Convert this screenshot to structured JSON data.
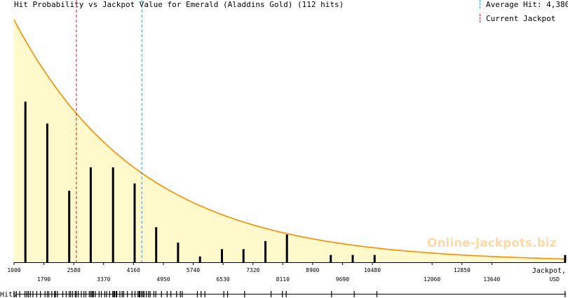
{
  "title": "Hit Probability vs Jackpot Value for Emerald (Aladdins Gold) (112 hits)",
  "legend": {
    "average": {
      "label": "Average Hit: 4,380",
      "color": "#3399dd"
    },
    "current": {
      "label": "Current Jackpot",
      "color": "#cc2222"
    }
  },
  "watermark": "Online-Jackpots.biz",
  "hits_label": "Hits",
  "chart_data": {
    "type": "bar",
    "title": "Hit Probability vs Jackpot Value for Emerald (Aladdins Gold) (112 hits)",
    "xlabel": "Jackpot,",
    "xlabel_unit": "USD",
    "xlim": [
      1000,
      15600
    ],
    "x_ticks": [
      1000,
      1790,
      2580,
      3370,
      4160,
      4950,
      5740,
      6530,
      7320,
      8110,
      8900,
      9690,
      10480,
      12060,
      12850,
      13640
    ],
    "bars": [
      {
        "x": 1300,
        "v": 11
      },
      {
        "x": 1880,
        "v": 9.5
      },
      {
        "x": 2460,
        "v": 4.9
      },
      {
        "x": 3030,
        "v": 6.5
      },
      {
        "x": 3620,
        "v": 6.5
      },
      {
        "x": 4190,
        "v": 5.4
      },
      {
        "x": 4760,
        "v": 2.4
      },
      {
        "x": 5340,
        "v": 1.35
      },
      {
        "x": 5920,
        "v": 0.4
      },
      {
        "x": 6500,
        "v": 0.9
      },
      {
        "x": 7070,
        "v": 0.9
      },
      {
        "x": 7650,
        "v": 1.45
      },
      {
        "x": 8220,
        "v": 1.9
      },
      {
        "x": 9380,
        "v": 0.5
      },
      {
        "x": 9960,
        "v": 0.5
      },
      {
        "x": 10540,
        "v": 0.5
      },
      {
        "x": 15580,
        "v": 0.5
      }
    ],
    "ylim": [
      0,
      17
    ],
    "curve": {
      "name": "fit",
      "color": "#ff8c00",
      "fill": "#fff9cc",
      "peak": 16.6,
      "scale": 3380
    },
    "average_hit": 4380,
    "current_jackpot": 2650,
    "hits": [
      1000,
      1060,
      1150,
      1290,
      1340,
      1380,
      1430,
      1500,
      1600,
      1700,
      1820,
      1880,
      1920,
      2000,
      2070,
      2100,
      2150,
      2290,
      2380,
      2460,
      2500,
      2550,
      2620,
      2650,
      2700,
      2780,
      2850,
      2900,
      2990,
      3030,
      3060,
      3090,
      3100,
      3150,
      3250,
      3310,
      3400,
      3450,
      3530,
      3610,
      3640,
      3660,
      3700,
      3720,
      3800,
      3860,
      3900,
      4000,
      4120,
      4200,
      4280,
      4310,
      4330,
      4370,
      4410,
      4440,
      4500,
      4560,
      4600,
      4700,
      4750,
      4900,
      5050,
      5150,
      5300,
      5400,
      5450,
      5850,
      5950,
      6050,
      6550,
      6650,
      7100,
      7800,
      8100,
      8200,
      9400,
      10000,
      10600,
      15580
    ]
  }
}
